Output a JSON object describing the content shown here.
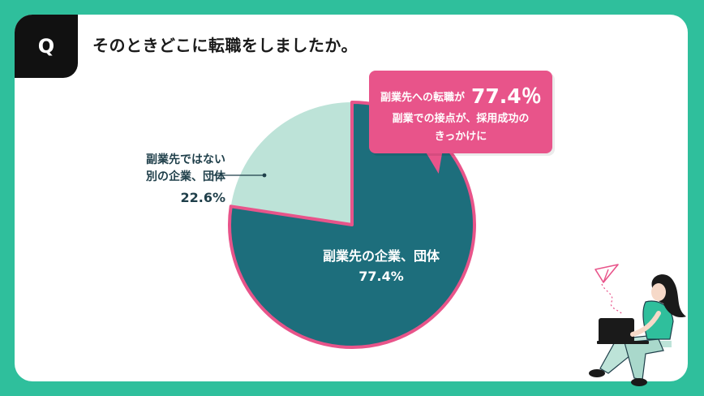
{
  "question": {
    "badge": "Q",
    "text": "そのときどこに転職をしましたか。"
  },
  "callout": {
    "line1": "副業先への転職が",
    "highlight": "77.4％",
    "line2": "副業での接点が、採用成功の",
    "line3": "きっかけに"
  },
  "chart_data": {
    "type": "pie",
    "slices": [
      {
        "label_line1": "副業先の企業、団体",
        "value_text": "77.4%",
        "value": 77.4,
        "color": "#1d6e7c"
      },
      {
        "label_line1": "副業先ではない",
        "label_line2": "別の企業、団体",
        "value_text": "22.6%",
        "value": 22.6,
        "color": "#bde3d8"
      }
    ],
    "highlight_border_color": "#e8548a"
  },
  "colors": {
    "background": "#2fbf9c",
    "card": "#ffffff",
    "accent_pink": "#e8548a",
    "teal_dark": "#1d6e7c",
    "mint_light": "#bde3d8"
  },
  "illustration": {
    "name": "woman-with-laptop-illustration"
  }
}
